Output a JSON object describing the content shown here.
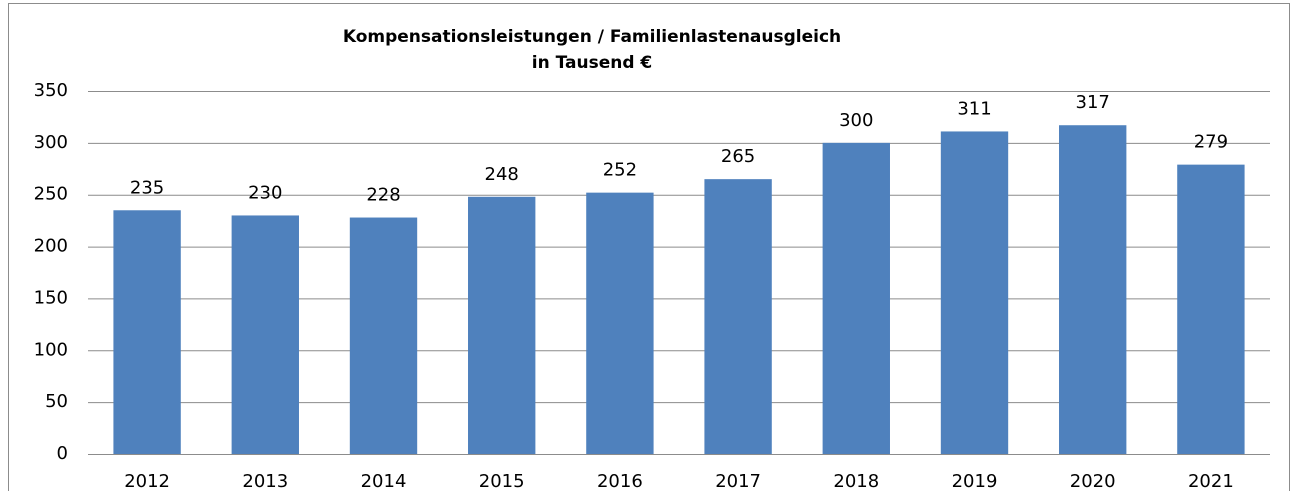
{
  "chart_data": {
    "type": "bar",
    "title": "Kompensationsleistungen / Familienlastenausgleich",
    "subtitle": "in Tausend €",
    "categories": [
      "2012",
      "2013",
      "2014",
      "2015",
      "2016",
      "2017",
      "2018",
      "2019",
      "2020",
      "2021"
    ],
    "values": [
      235,
      230,
      228,
      248,
      252,
      265,
      300,
      311,
      317,
      279
    ],
    "color": "#4f81bd",
    "ylim": [
      0,
      350
    ],
    "yticks": [
      0,
      50,
      100,
      150,
      200,
      250,
      300,
      350
    ],
    "grid": true
  }
}
